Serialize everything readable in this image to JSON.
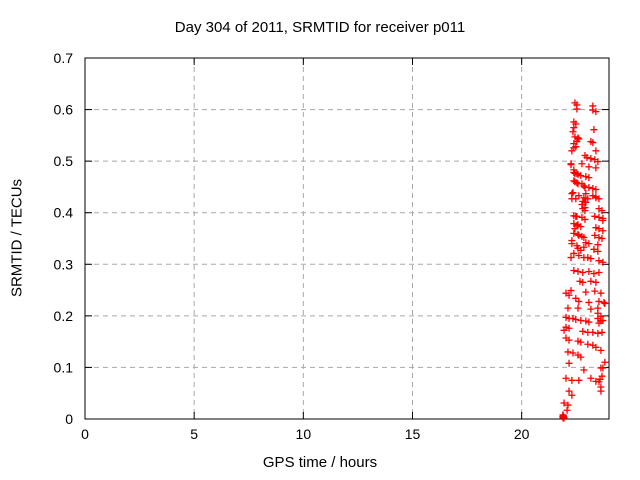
{
  "window": {
    "background": "#ffffff"
  },
  "chart_data": {
    "type": "scatter",
    "title": "Day 304 of 2011, SRMTID for receiver p011",
    "xlabel": "GPS time / hours",
    "ylabel": "SRMTID / TECUs",
    "xlim": [
      0,
      24
    ],
    "ylim": [
      0,
      0.7
    ],
    "xticks": {
      "values": [
        0,
        5,
        10,
        15,
        20
      ],
      "labels": [
        "0",
        "5",
        "10",
        "15",
        "20"
      ]
    },
    "yticks": {
      "values": [
        0,
        0.1,
        0.2,
        0.3,
        0.4,
        0.5,
        0.6,
        0.7
      ],
      "labels": [
        "0",
        "0.1",
        "0.2",
        "0.3",
        "0.4",
        "0.5",
        "0.6",
        "0.7"
      ]
    },
    "grid": {
      "visible": true,
      "style": "dashed",
      "color": "#a8a8a8"
    },
    "frame_color": "#000000",
    "legend": "none",
    "series": [
      {
        "name": "SRMTID",
        "marker": "plus",
        "color": "#ff0000",
        "points": [
          [
            22.44,
            0.613
          ],
          [
            22.53,
            0.609
          ],
          [
            22.53,
            0.601
          ],
          [
            23.26,
            0.607
          ],
          [
            23.26,
            0.599
          ],
          [
            23.4,
            0.596
          ],
          [
            22.39,
            0.576
          ],
          [
            22.48,
            0.572
          ],
          [
            22.39,
            0.565
          ],
          [
            22.35,
            0.557
          ],
          [
            23.31,
            0.561
          ],
          [
            22.44,
            0.547
          ],
          [
            22.58,
            0.545
          ],
          [
            22.62,
            0.543
          ],
          [
            23.17,
            0.538
          ],
          [
            23.26,
            0.536
          ],
          [
            22.53,
            0.538
          ],
          [
            22.39,
            0.534
          ],
          [
            22.48,
            0.528
          ],
          [
            22.39,
            0.526
          ],
          [
            23.4,
            0.52
          ],
          [
            22.3,
            0.52
          ],
          [
            22.9,
            0.511
          ],
          [
            22.99,
            0.507
          ],
          [
            23.17,
            0.505
          ],
          [
            23.35,
            0.503
          ],
          [
            23.49,
            0.499
          ],
          [
            22.26,
            0.495
          ],
          [
            22.76,
            0.495
          ],
          [
            22.26,
            0.493
          ],
          [
            23.08,
            0.489
          ],
          [
            23.4,
            0.487
          ],
          [
            22.39,
            0.483
          ],
          [
            22.39,
            0.478
          ],
          [
            22.44,
            0.476
          ],
          [
            22.58,
            0.474
          ],
          [
            22.53,
            0.476
          ],
          [
            22.71,
            0.472
          ],
          [
            22.94,
            0.47
          ],
          [
            23.08,
            0.468
          ],
          [
            22.44,
            0.46
          ],
          [
            22.39,
            0.462
          ],
          [
            22.53,
            0.458
          ],
          [
            22.58,
            0.456
          ],
          [
            22.76,
            0.456
          ],
          [
            22.85,
            0.452
          ],
          [
            23.08,
            0.449
          ],
          [
            22.9,
            0.449
          ],
          [
            23.26,
            0.447
          ],
          [
            23.4,
            0.445
          ],
          [
            22.35,
            0.439
          ],
          [
            22.94,
            0.437
          ],
          [
            22.3,
            0.437
          ],
          [
            22.62,
            0.433
          ],
          [
            23.26,
            0.433
          ],
          [
            23.4,
            0.431
          ],
          [
            22.85,
            0.429
          ],
          [
            22.3,
            0.427
          ],
          [
            22.48,
            0.427
          ],
          [
            23.03,
            0.427
          ],
          [
            23.4,
            0.429
          ],
          [
            23.54,
            0.427
          ],
          [
            22.8,
            0.422
          ],
          [
            22.94,
            0.42
          ],
          [
            22.9,
            0.42
          ],
          [
            22.76,
            0.416
          ],
          [
            22.9,
            0.41
          ],
          [
            22.8,
            0.408
          ],
          [
            23.54,
            0.408
          ],
          [
            23.68,
            0.404
          ],
          [
            22.9,
            0.404
          ],
          [
            22.39,
            0.394
          ],
          [
            22.53,
            0.393
          ],
          [
            22.76,
            0.391
          ],
          [
            22.9,
            0.387
          ],
          [
            22.48,
            0.393
          ],
          [
            23.35,
            0.393
          ],
          [
            23.54,
            0.391
          ],
          [
            23.72,
            0.389
          ],
          [
            23.72,
            0.385
          ],
          [
            22.39,
            0.379
          ],
          [
            22.58,
            0.377
          ],
          [
            22.53,
            0.375
          ],
          [
            22.71,
            0.373
          ],
          [
            22.44,
            0.369
          ],
          [
            23.4,
            0.371
          ],
          [
            23.54,
            0.369
          ],
          [
            23.72,
            0.365
          ],
          [
            22.39,
            0.36
          ],
          [
            22.58,
            0.358
          ],
          [
            22.62,
            0.356
          ],
          [
            22.76,
            0.354
          ],
          [
            23.35,
            0.356
          ],
          [
            23.54,
            0.352
          ],
          [
            23.68,
            0.35
          ],
          [
            22.85,
            0.352
          ],
          [
            22.3,
            0.346
          ],
          [
            22.3,
            0.34
          ],
          [
            22.94,
            0.342
          ],
          [
            23.08,
            0.34
          ],
          [
            23.49,
            0.338
          ],
          [
            22.53,
            0.336
          ],
          [
            22.85,
            0.333
          ],
          [
            22.58,
            0.331
          ],
          [
            22.71,
            0.327
          ],
          [
            23.31,
            0.329
          ],
          [
            23.49,
            0.325
          ],
          [
            22.39,
            0.321
          ],
          [
            22.62,
            0.317
          ],
          [
            22.26,
            0.313
          ],
          [
            22.85,
            0.313
          ],
          [
            23.03,
            0.313
          ],
          [
            23.17,
            0.311
          ],
          [
            23.54,
            0.307
          ],
          [
            23.72,
            0.304
          ],
          [
            22.39,
            0.288
          ],
          [
            22.58,
            0.286
          ],
          [
            22.8,
            0.284
          ],
          [
            23.08,
            0.286
          ],
          [
            23.31,
            0.282
          ],
          [
            23.54,
            0.284
          ],
          [
            22.67,
            0.267
          ],
          [
            22.8,
            0.265
          ],
          [
            23.17,
            0.267
          ],
          [
            23.4,
            0.265
          ],
          [
            22.26,
            0.249
          ],
          [
            22.03,
            0.244
          ],
          [
            22.17,
            0.24
          ],
          [
            22.94,
            0.246
          ],
          [
            23.35,
            0.248
          ],
          [
            23.63,
            0.244
          ],
          [
            22.48,
            0.234
          ],
          [
            22.62,
            0.228
          ],
          [
            23.08,
            0.226
          ],
          [
            23.77,
            0.226
          ],
          [
            23.54,
            0.228
          ],
          [
            23.81,
            0.224
          ],
          [
            22.12,
            0.215
          ],
          [
            22.58,
            0.215
          ],
          [
            23.17,
            0.213
          ],
          [
            23.49,
            0.215
          ],
          [
            23.49,
            0.205
          ],
          [
            22.03,
            0.197
          ],
          [
            22.17,
            0.195
          ],
          [
            22.35,
            0.195
          ],
          [
            22.48,
            0.193
          ],
          [
            22.71,
            0.191
          ],
          [
            22.94,
            0.19
          ],
          [
            23.08,
            0.188
          ],
          [
            23.49,
            0.195
          ],
          [
            23.63,
            0.199
          ],
          [
            23.63,
            0.19
          ],
          [
            23.72,
            0.191
          ],
          [
            23.54,
            0.186
          ],
          [
            22.03,
            0.178
          ],
          [
            22.17,
            0.176
          ],
          [
            21.94,
            0.172
          ],
          [
            22.8,
            0.17
          ],
          [
            23.03,
            0.168
          ],
          [
            23.26,
            0.168
          ],
          [
            23.49,
            0.166
          ],
          [
            23.68,
            0.168
          ],
          [
            22.03,
            0.157
          ],
          [
            22.17,
            0.153
          ],
          [
            22.58,
            0.151
          ],
          [
            22.71,
            0.149
          ],
          [
            23.03,
            0.145
          ],
          [
            23.26,
            0.143
          ],
          [
            23.4,
            0.139
          ],
          [
            22.12,
            0.13
          ],
          [
            22.35,
            0.128
          ],
          [
            22.58,
            0.124
          ],
          [
            22.71,
            0.12
          ],
          [
            23.63,
            0.133
          ],
          [
            22.17,
            0.108
          ],
          [
            23.81,
            0.11
          ],
          [
            22.85,
            0.095
          ],
          [
            23.72,
            0.099
          ],
          [
            23.63,
            0.099
          ],
          [
            22.03,
            0.079
          ],
          [
            22.3,
            0.075
          ],
          [
            22.62,
            0.075
          ],
          [
            23.17,
            0.079
          ],
          [
            23.4,
            0.073
          ],
          [
            23.54,
            0.072
          ],
          [
            23.68,
            0.083
          ],
          [
            23.59,
            0.077
          ],
          [
            22.17,
            0.054
          ],
          [
            22.3,
            0.046
          ],
          [
            23.63,
            0.062
          ],
          [
            23.63,
            0.054
          ],
          [
            21.94,
            0.031
          ],
          [
            22.12,
            0.027
          ],
          [
            22.08,
            0.017
          ],
          [
            21.88,
            0.004
          ],
          [
            21.9,
            0.002
          ],
          [
            21.91,
            0.006
          ],
          [
            21.89,
            0.008
          ],
          [
            21.92,
            0.004
          ],
          [
            21.94,
            0.002
          ]
        ]
      }
    ]
  }
}
